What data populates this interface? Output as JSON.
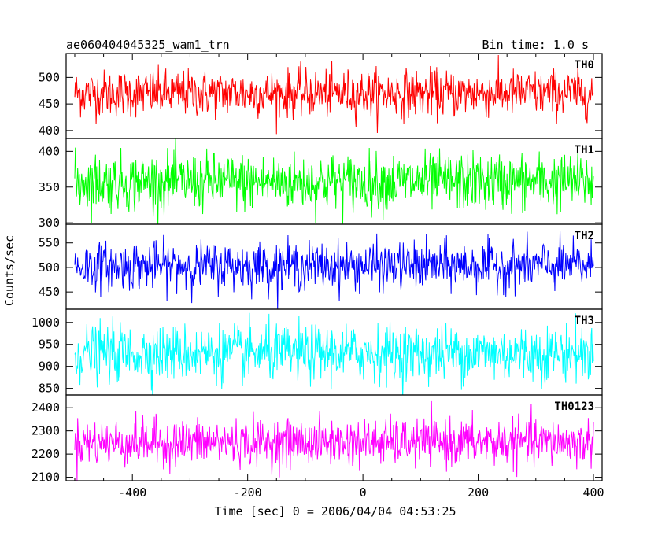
{
  "header": {
    "left_title": "ae060404045325_wam1_trn",
    "right_title": "Bin time: 1.0 s"
  },
  "axes": {
    "xlabel": "Time [sec] 0 = 2006/04/04 04:53:25",
    "ylabel": "Counts/sec"
  },
  "chart_data": {
    "type": "line",
    "title": "ae060404045325_wam1_trn",
    "subtitle": "Bin time: 1.0 s",
    "xlabel": "Time [sec] 0 = 2006/04/04 04:53:25",
    "ylabel": "Counts/sec",
    "xlim": [
      -515,
      415
    ],
    "x_range": [
      -500,
      400
    ],
    "x_ticks": [
      -400,
      -200,
      0,
      200,
      400
    ],
    "grid": false,
    "legend": "none",
    "series": [
      {
        "name": "TH0",
        "color": "#ff0000",
        "mean": 470,
        "sigma": 22,
        "ylim": [
          385,
          545
        ],
        "y_ticks": [
          400,
          450,
          500
        ]
      },
      {
        "name": "TH1",
        "color": "#00ff00",
        "mean": 357,
        "sigma": 20,
        "ylim": [
          298,
          418
        ],
        "y_ticks": [
          300,
          350,
          400
        ]
      },
      {
        "name": "TH2",
        "color": "#0000ff",
        "mean": 503,
        "sigma": 24,
        "ylim": [
          415,
          588
        ],
        "y_ticks": [
          450,
          500,
          550
        ]
      },
      {
        "name": "TH3",
        "color": "#00ffff",
        "mean": 930,
        "sigma": 32,
        "ylim": [
          835,
          1030
        ],
        "y_ticks": [
          850,
          900,
          950,
          1000
        ]
      },
      {
        "name": "TH0123",
        "color": "#ff00ff",
        "mean": 2250,
        "sigma": 50,
        "ylim": [
          2085,
          2455
        ],
        "y_ticks": [
          2100,
          2200,
          2300,
          2400
        ]
      }
    ]
  }
}
